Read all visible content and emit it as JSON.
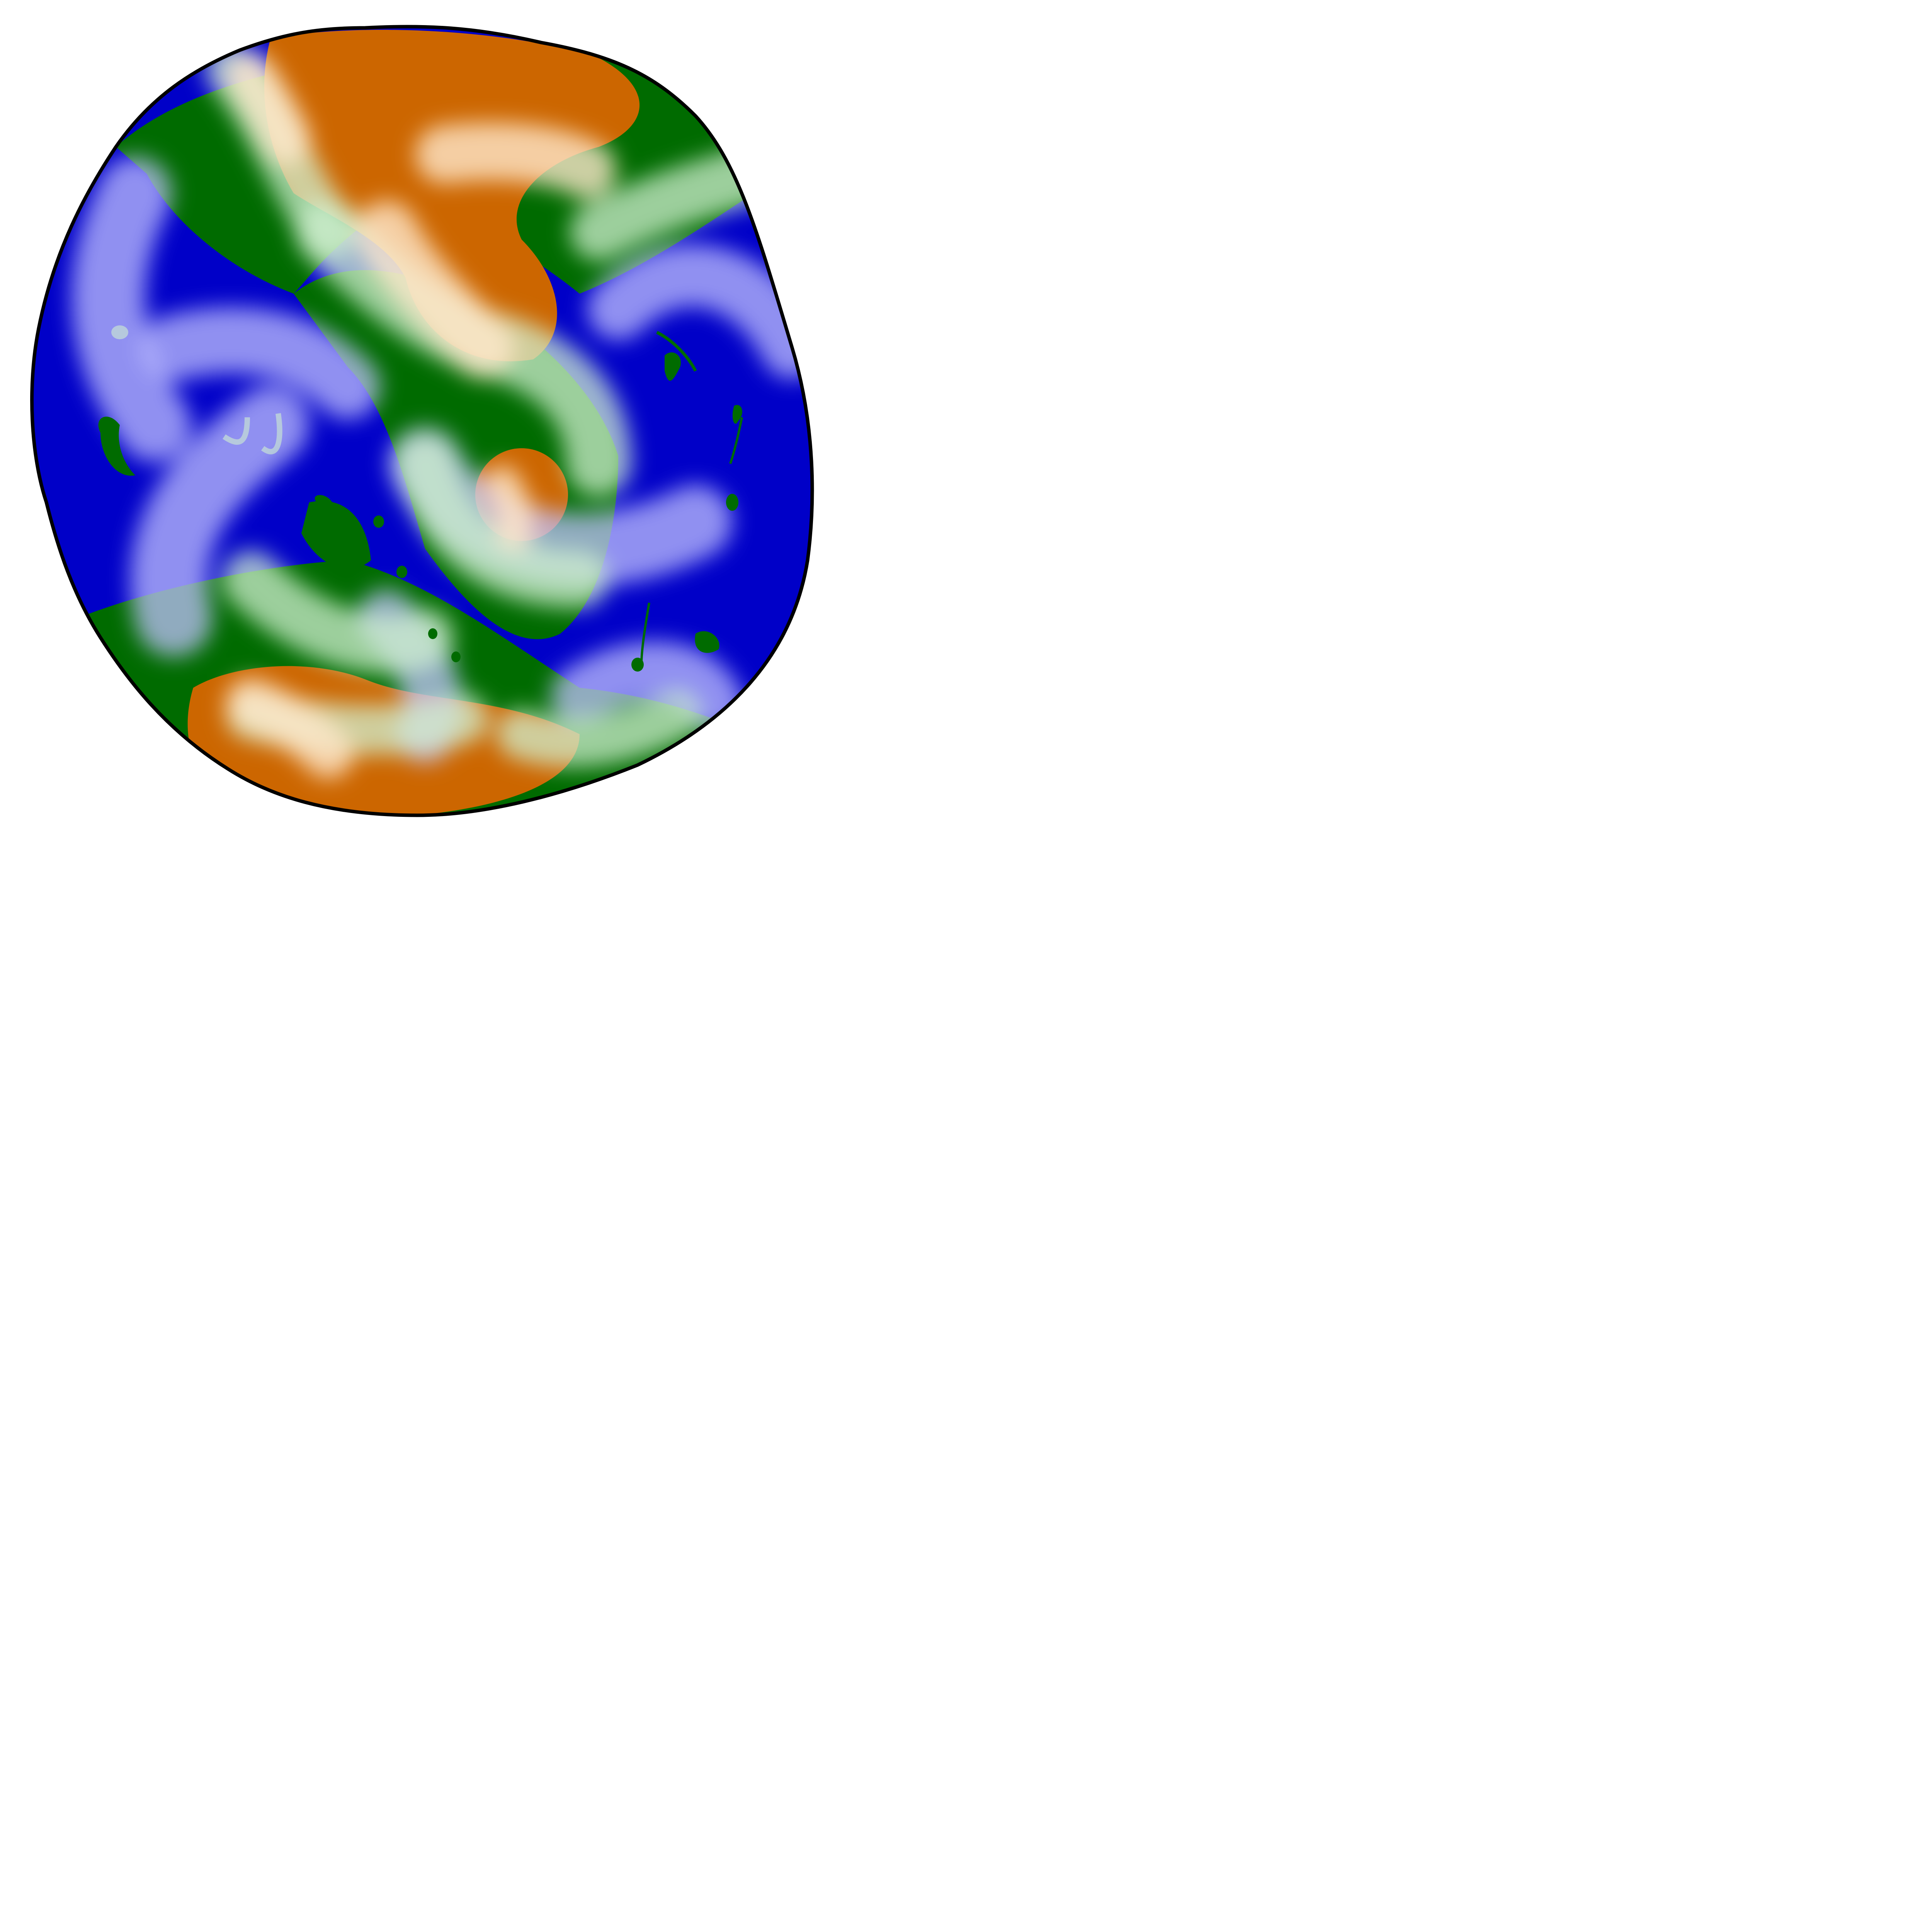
{
  "background_color": "#ffffff",
  "planet": {
    "icon": "planet-icon",
    "colors": {
      "ocean": "#0000c8",
      "land": "#006b00",
      "desert": "#cc6600",
      "ocean_highlight": "#c0c0ff",
      "land_highlight": "#d0f0d0",
      "desert_highlight": "#ffe8cc",
      "outline": "#000000"
    }
  }
}
